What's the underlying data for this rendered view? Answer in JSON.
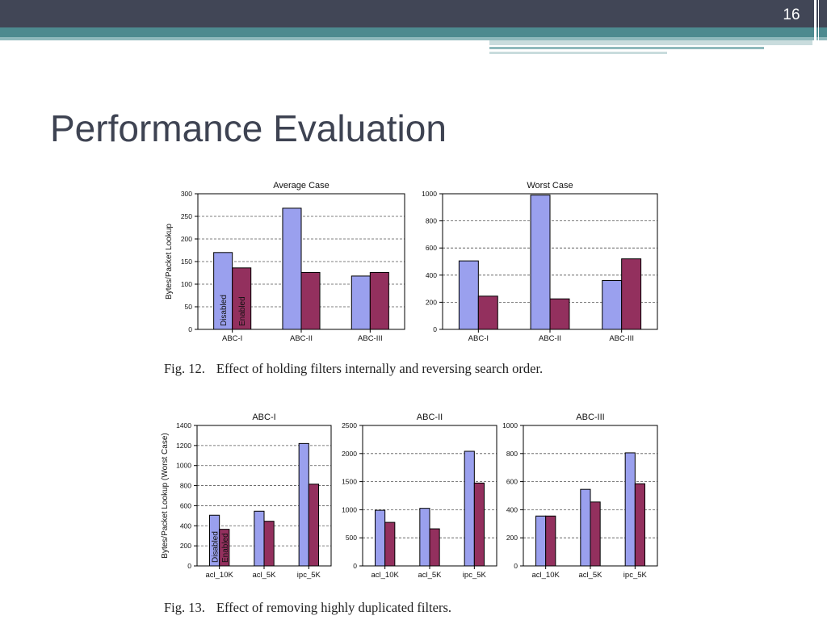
{
  "slide": {
    "number": "16",
    "title": "Performance Evaluation"
  },
  "colors": {
    "disabled": "#9aa0ee",
    "enabled": "#93305e",
    "topbar": "#414656",
    "accent": "#4d8a8f"
  },
  "figures": [
    {
      "number": "Fig. 12.",
      "caption": "Effect of holding filters internally and reversing search order."
    },
    {
      "number": "Fig. 13.",
      "caption": "Effect of removing highly duplicated filters."
    }
  ],
  "chart_data": [
    {
      "type": "bar",
      "title": "Average Case",
      "ylabel": "Bytes/Packet Lookup",
      "categories": [
        "ABC-I",
        "ABC-II",
        "ABC-III"
      ],
      "series": [
        {
          "name": "Disabled",
          "values": [
            170,
            268,
            118
          ]
        },
        {
          "name": "Enabled",
          "values": [
            136,
            126,
            126
          ]
        }
      ],
      "ylim": [
        0,
        300
      ],
      "yticks": [
        "0",
        "50",
        "100",
        "150",
        "200",
        "250",
        "300"
      ],
      "grid": true,
      "legend": "in-bar"
    },
    {
      "type": "bar",
      "title": "Worst Case",
      "ylabel": "",
      "categories": [
        "ABC-I",
        "ABC-II",
        "ABC-III"
      ],
      "series": [
        {
          "name": "Disabled",
          "values": [
            505,
            990,
            360
          ]
        },
        {
          "name": "Enabled",
          "values": [
            245,
            225,
            520
          ]
        }
      ],
      "ylim": [
        0,
        1000
      ],
      "yticks": [
        "0",
        "200",
        "400",
        "600",
        "800",
        "1000"
      ],
      "grid": true,
      "legend": "none"
    },
    {
      "type": "bar",
      "title": "ABC-I",
      "ylabel": "Bytes/Packet Lookup (Worst Case)",
      "categories": [
        "acl_10K",
        "acl_5K",
        "ipc_5K"
      ],
      "series": [
        {
          "name": "Disabled",
          "values": [
            505,
            545,
            1220
          ]
        },
        {
          "name": "Enabled",
          "values": [
            365,
            445,
            815
          ]
        }
      ],
      "ylim": [
        0,
        1400
      ],
      "yticks": [
        "0",
        "200",
        "400",
        "600",
        "800",
        "1000",
        "1200",
        "1400"
      ],
      "grid": true,
      "legend": "in-bar"
    },
    {
      "type": "bar",
      "title": "ABC-II",
      "ylabel": "",
      "categories": [
        "acl_10K",
        "acl_5K",
        "ipc_5K"
      ],
      "series": [
        {
          "name": "Disabled",
          "values": [
            990,
            1025,
            2040
          ]
        },
        {
          "name": "Enabled",
          "values": [
            775,
            660,
            1475
          ]
        }
      ],
      "ylim": [
        0,
        2500
      ],
      "yticks": [
        "0",
        "500",
        "1000",
        "1500",
        "2000",
        "2500"
      ],
      "grid": true,
      "legend": "none"
    },
    {
      "type": "bar",
      "title": "ABC-III",
      "ylabel": "",
      "categories": [
        "acl_10K",
        "acl_5K",
        "ipc_5K"
      ],
      "series": [
        {
          "name": "Disabled",
          "values": [
            355,
            545,
            805
          ]
        },
        {
          "name": "Enabled",
          "values": [
            355,
            455,
            585
          ]
        }
      ],
      "ylim": [
        0,
        1000
      ],
      "yticks": [
        "0",
        "200",
        "400",
        "600",
        "800",
        "1000"
      ],
      "grid": true,
      "legend": "none"
    }
  ]
}
